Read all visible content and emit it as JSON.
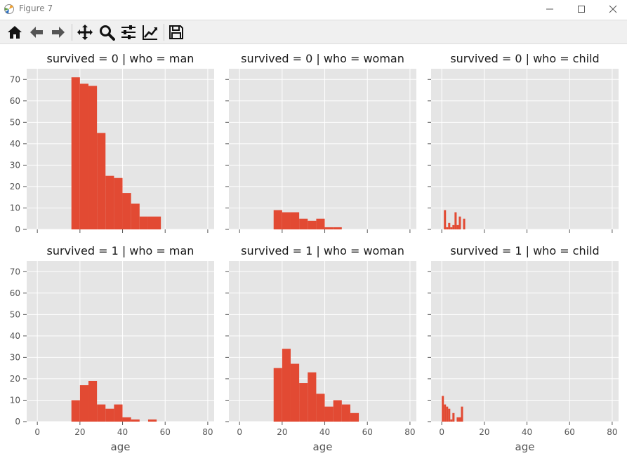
{
  "window": {
    "title": "Figure 7"
  },
  "toolbar": {
    "buttons": [
      {
        "name": "home-icon"
      },
      {
        "name": "back-icon"
      },
      {
        "name": "forward-icon"
      },
      {
        "name": "pan-icon"
      },
      {
        "name": "zoom-icon"
      },
      {
        "name": "configure-subplots-icon"
      },
      {
        "name": "edit-axes-icon"
      },
      {
        "name": "save-icon"
      }
    ]
  },
  "colors": {
    "bar": "#E24A33",
    "panel_bg": "#E5E5E5",
    "grid": "#FFFFFF"
  },
  "chart_data": {
    "type": "bar",
    "style": "histogram facet grid",
    "xlabel": "age",
    "xlim": [
      -5,
      83
    ],
    "ylim": [
      0,
      75
    ],
    "xticks": [
      0,
      20,
      40,
      60,
      80
    ],
    "yticks": [
      0,
      10,
      20,
      30,
      40,
      50,
      60,
      70
    ],
    "grid": true,
    "panels": [
      {
        "title": "survived = 0 | who = man",
        "bins": [
          [
            16,
            20,
            71
          ],
          [
            20,
            24,
            68
          ],
          [
            24,
            28,
            67
          ],
          [
            28,
            32,
            45
          ],
          [
            32,
            36,
            25
          ],
          [
            36,
            40,
            24
          ],
          [
            40,
            44,
            17
          ],
          [
            44,
            48,
            12
          ],
          [
            48,
            52,
            6
          ],
          [
            52,
            58,
            6
          ]
        ]
      },
      {
        "title": "survived = 0 | who = woman",
        "bins": [
          [
            16,
            20,
            9
          ],
          [
            20,
            24,
            8
          ],
          [
            24,
            28,
            8
          ],
          [
            28,
            32,
            5
          ],
          [
            32,
            36,
            4
          ],
          [
            36,
            40,
            5
          ],
          [
            40,
            44,
            1
          ],
          [
            44,
            48,
            1
          ]
        ]
      },
      {
        "title": "survived = 0 | who = child",
        "bins": [
          [
            1,
            2,
            9
          ],
          [
            2,
            3,
            1
          ],
          [
            3,
            4,
            3
          ],
          [
            4,
            5,
            1
          ],
          [
            5,
            6,
            2
          ],
          [
            6,
            7,
            8
          ],
          [
            7,
            8,
            2
          ],
          [
            8,
            9,
            6
          ],
          [
            9,
            10,
            0
          ],
          [
            10,
            11,
            5
          ]
        ]
      },
      {
        "title": "survived = 1 | who = man",
        "bins": [
          [
            16,
            20,
            10
          ],
          [
            20,
            24,
            17
          ],
          [
            24,
            28,
            19
          ],
          [
            28,
            32,
            8
          ],
          [
            32,
            36,
            6
          ],
          [
            36,
            40,
            8
          ],
          [
            40,
            44,
            2
          ],
          [
            44,
            48,
            1
          ],
          [
            48,
            52,
            0
          ],
          [
            52,
            56,
            1
          ]
        ]
      },
      {
        "title": "survived = 1 | who = woman",
        "bins": [
          [
            16,
            20,
            25
          ],
          [
            20,
            24,
            34
          ],
          [
            24,
            28,
            27
          ],
          [
            28,
            32,
            18
          ],
          [
            32,
            36,
            23
          ],
          [
            36,
            40,
            13
          ],
          [
            40,
            44,
            7
          ],
          [
            44,
            48,
            10
          ],
          [
            48,
            52,
            8
          ],
          [
            52,
            56,
            4
          ]
        ]
      },
      {
        "title": "survived = 1 | who = child",
        "bins": [
          [
            0,
            1,
            12
          ],
          [
            1,
            2,
            8
          ],
          [
            2,
            3,
            7
          ],
          [
            3,
            4,
            6
          ],
          [
            4,
            5,
            1
          ],
          [
            5,
            6,
            4
          ],
          [
            6,
            7,
            0
          ],
          [
            7,
            8,
            2
          ],
          [
            8,
            9,
            2
          ],
          [
            9,
            10,
            7
          ]
        ]
      }
    ]
  }
}
